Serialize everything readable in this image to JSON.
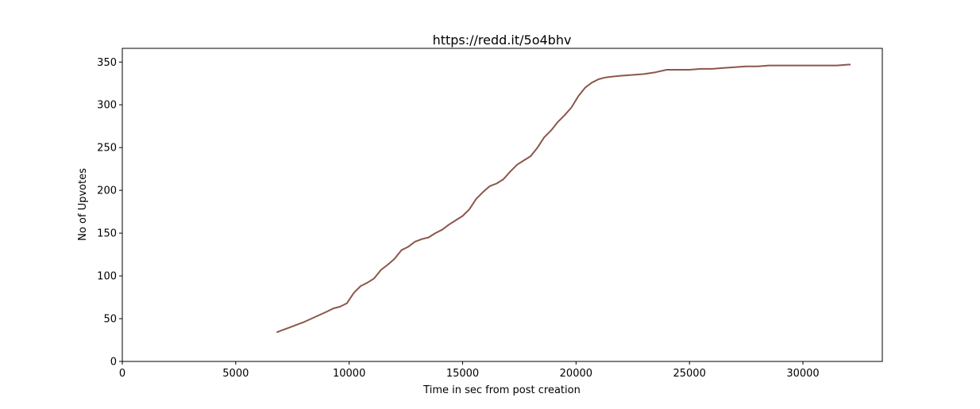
{
  "chart_data": {
    "type": "line",
    "title": "https://redd.it/5o4bhv",
    "xlabel": "Time in sec from post creation",
    "ylabel": "No of Upvotes",
    "xlim": [
      0,
      33500
    ],
    "ylim": [
      0,
      366
    ],
    "xticks": [
      0,
      5000,
      10000,
      15000,
      20000,
      25000,
      30000
    ],
    "yticks": [
      0,
      50,
      100,
      150,
      200,
      250,
      300,
      350
    ],
    "grid": false,
    "legend": "none",
    "line_color": "#8c564b",
    "series": [
      {
        "x": [
          6800,
          7000,
          7300,
          7600,
          8000,
          8500,
          9000,
          9300,
          9600,
          9900,
          10200,
          10500,
          10800,
          11100,
          11400,
          11700,
          12000,
          12300,
          12600,
          12900,
          13200,
          13500,
          13800,
          14100,
          14400,
          14700,
          15000,
          15300,
          15600,
          15900,
          16200,
          16500,
          16800,
          17100,
          17400,
          17700,
          18000,
          18300,
          18600,
          18900,
          19200,
          19500,
          19800,
          20100,
          20400,
          20700,
          21000,
          21300,
          21600,
          22000,
          22500,
          23000,
          23500,
          24000,
          24500,
          25000,
          25500,
          26000,
          26500,
          27000,
          27500,
          28000,
          28500,
          29000,
          29500,
          30000,
          30500,
          31000,
          31500,
          32000,
          32100
        ],
        "y": [
          34,
          36,
          39,
          42,
          46,
          52,
          58,
          62,
          64,
          68,
          80,
          88,
          92,
          97,
          107,
          113,
          120,
          130,
          134,
          140,
          143,
          145,
          150,
          154,
          160,
          165,
          170,
          178,
          190,
          198,
          205,
          208,
          213,
          222,
          230,
          235,
          240,
          250,
          262,
          270,
          280,
          288,
          297,
          310,
          320,
          326,
          330,
          332,
          333,
          334,
          335,
          336,
          338,
          341,
          341,
          341,
          342,
          342,
          343,
          344,
          345,
          345,
          346,
          346,
          346,
          346,
          346,
          346,
          346,
          347,
          347
        ]
      }
    ]
  }
}
